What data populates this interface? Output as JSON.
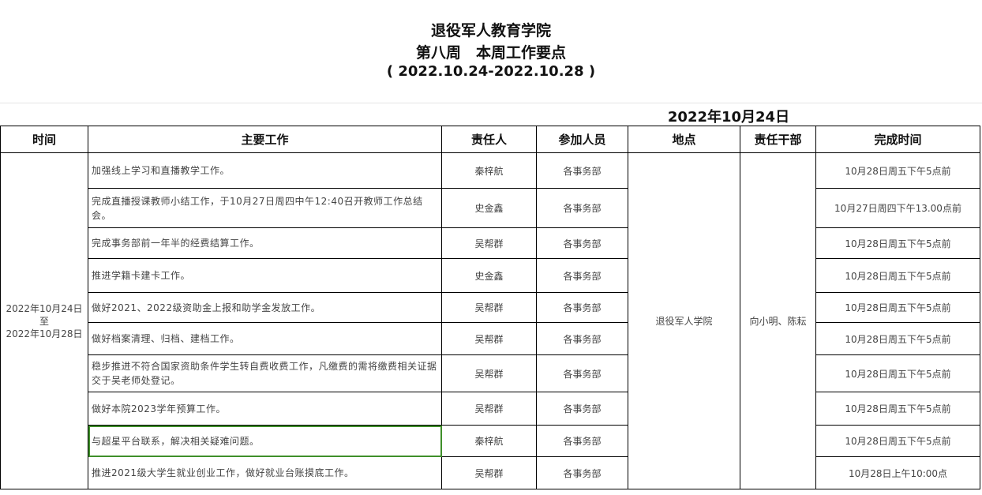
{
  "title": {
    "line1": "退役军人教育学院",
    "line2": "第八周　本周工作要点",
    "line3": "( 2022.10.24-2022.10.28 )"
  },
  "date": "2022年10月24日",
  "headers": [
    "时间",
    "主要工作",
    "责任人",
    "参加人员",
    "地点",
    "责任干部",
    "完成时间"
  ],
  "period": {
    "start": "2022年10月24日",
    "to": "至",
    "end": "2022年10月28日"
  },
  "location": "退役军人学院",
  "cadre": "向小明、陈耘",
  "rows": [
    {
      "work": "加强线上学习和直播教学工作。",
      "owner": "秦梓航",
      "participants": "各事务部",
      "deadline": "10月28日周五下午5点前"
    },
    {
      "work": "完成直播授课教师小结工作，于10月27日周四中午12:40召开教师工作总结会。",
      "owner": "史金鑫",
      "participants": "各事务部",
      "deadline": "10月27日周四下午13.00点前"
    },
    {
      "work": "完成事务部前一年半的经费结算工作。",
      "owner": "吴帮群",
      "participants": "各事务部",
      "deadline": "10月28日周五下午5点前"
    },
    {
      "work": "推进学籍卡建卡工作。",
      "owner": "史金鑫",
      "participants": "各事务部",
      "deadline": "10月28日周五下午5点前"
    },
    {
      "work": "做好2021、2022级资助金上报和助学金发放工作。",
      "owner": "吴帮群",
      "participants": "各事务部",
      "deadline": "10月28日周五下午5点前"
    },
    {
      "work": "做好档案清理、归档、建档工作。",
      "owner": "吴帮群",
      "participants": "各事务部",
      "deadline": "10月28日周五下午5点前"
    },
    {
      "work": "稳步推进不符合国家资助条件学生转自费收费工作，凡缴费的需将缴费相关证据交于吴老师处登记。",
      "owner": "吴帮群",
      "participants": "各事务部",
      "deadline": "10月28日周五下午5点前"
    },
    {
      "work": "做好本院2023学年预算工作。",
      "owner": "吴帮群",
      "participants": "各事务部",
      "deadline": "10月28日周五下午5点前"
    },
    {
      "work": "与超星平台联系，解决相关疑难问题。",
      "owner": "秦梓航",
      "participants": "各事务部",
      "deadline": "10月28日周五下午5点前"
    },
    {
      "work": "推进2021级大学生就业创业工作，做好就业台账摸底工作。",
      "owner": "吴帮群",
      "participants": "各事务部",
      "deadline": "10月28日上午10:00点"
    }
  ],
  "selection_color": "#3f8f2a"
}
